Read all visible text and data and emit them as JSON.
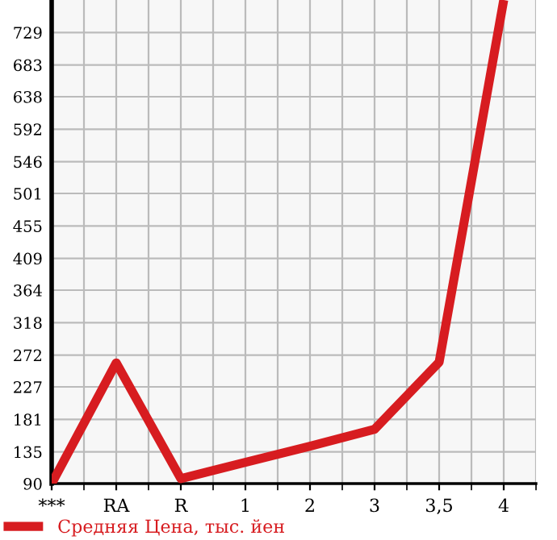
{
  "chart_data": {
    "type": "line",
    "categories": [
      "***",
      "RA",
      "R",
      "1",
      "2",
      "3",
      "3,5",
      "4"
    ],
    "series": [
      {
        "name": "Средняя Цена, тыс. йен",
        "color": "#d71c20",
        "values": [
          90,
          261,
          97,
          120,
          143,
          167,
          262,
          775
        ]
      }
    ],
    "ylim": [
      90,
      775
    ],
    "yticks": [
      90,
      135,
      181,
      227,
      272,
      318,
      364,
      409,
      455,
      501,
      546,
      592,
      638,
      683,
      729
    ],
    "grid": true,
    "legend": "bottom left",
    "marker": "none",
    "line_style": "solid"
  }
}
